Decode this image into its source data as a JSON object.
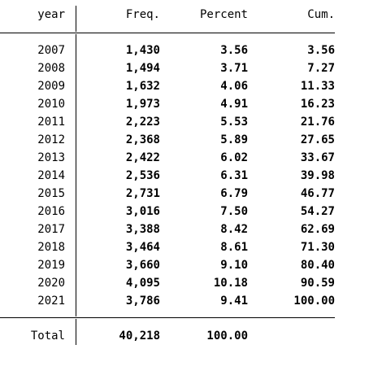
{
  "header": {
    "year": "year",
    "freq": "Freq.",
    "percent": "Percent",
    "cum": "Cum."
  },
  "rows": [
    {
      "year": "2007",
      "freq": "1,430",
      "percent": "3.56",
      "cum": "3.56"
    },
    {
      "year": "2008",
      "freq": "1,494",
      "percent": "3.71",
      "cum": "7.27"
    },
    {
      "year": "2009",
      "freq": "1,632",
      "percent": "4.06",
      "cum": "11.33"
    },
    {
      "year": "2010",
      "freq": "1,973",
      "percent": "4.91",
      "cum": "16.23"
    },
    {
      "year": "2011",
      "freq": "2,223",
      "percent": "5.53",
      "cum": "21.76"
    },
    {
      "year": "2012",
      "freq": "2,368",
      "percent": "5.89",
      "cum": "27.65"
    },
    {
      "year": "2013",
      "freq": "2,422",
      "percent": "6.02",
      "cum": "33.67"
    },
    {
      "year": "2014",
      "freq": "2,536",
      "percent": "6.31",
      "cum": "39.98"
    },
    {
      "year": "2015",
      "freq": "2,731",
      "percent": "6.79",
      "cum": "46.77"
    },
    {
      "year": "2016",
      "freq": "3,016",
      "percent": "7.50",
      "cum": "54.27"
    },
    {
      "year": "2017",
      "freq": "3,388",
      "percent": "8.42",
      "cum": "62.69"
    },
    {
      "year": "2018",
      "freq": "3,464",
      "percent": "8.61",
      "cum": "71.30"
    },
    {
      "year": "2019",
      "freq": "3,660",
      "percent": "9.10",
      "cum": "80.40"
    },
    {
      "year": "2020",
      "freq": "4,095",
      "percent": "10.18",
      "cum": "90.59"
    },
    {
      "year": "2021",
      "freq": "3,786",
      "percent": "9.41",
      "cum": "100.00"
    }
  ],
  "total": {
    "label": "Total",
    "freq": "40,218",
    "percent": "100.00"
  }
}
